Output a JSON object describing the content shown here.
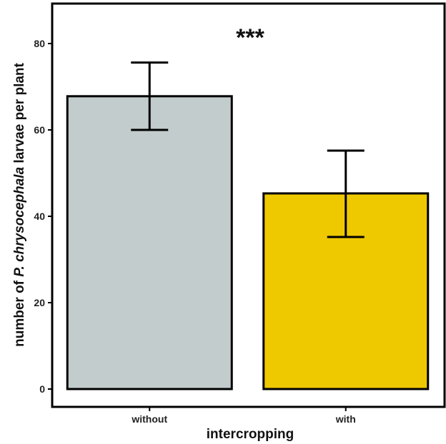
{
  "chart_data": {
    "type": "bar",
    "categories": [
      "without",
      "with"
    ],
    "values": [
      67.8,
      45.3
    ],
    "error_upper": [
      75.6,
      55.2
    ],
    "error_lower": [
      60.0,
      35.2
    ],
    "colors": [
      "#c2cccc",
      "#eec900"
    ],
    "xlabel": "intercropping",
    "ylabel_parts": {
      "prefix": "number of ",
      "italic": "P. chrysocephala",
      "suffix": " larvae per plant"
    },
    "ylim": [
      -4,
      89.5
    ],
    "yticks": [
      0,
      20,
      40,
      60,
      80
    ],
    "annotation": "***",
    "grid": false,
    "legend": "none"
  }
}
